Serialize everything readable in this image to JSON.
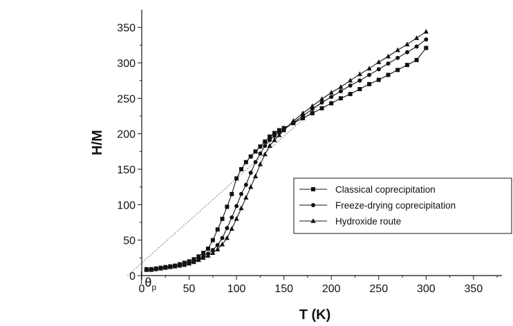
{
  "chart_data": {
    "type": "line",
    "xlabel": "T (K)",
    "ylabel": "H/M",
    "xlim": [
      0,
      380
    ],
    "ylim": [
      0,
      375
    ],
    "xticks": [
      0,
      50,
      100,
      150,
      200,
      250,
      300,
      350
    ],
    "yticks": [
      0,
      50,
      100,
      150,
      200,
      250,
      300,
      350
    ],
    "legend_position": "right",
    "annotation": {
      "text": "θ",
      "subscript": "p",
      "x": -15
    },
    "extrapolation_line": {
      "x": [
        -15,
        190
      ],
      "y": [
        0,
        244
      ],
      "style": "dotted"
    },
    "series": [
      {
        "name": "Classical coprecipitation",
        "marker": "square",
        "x": [
          5,
          10,
          15,
          20,
          25,
          30,
          35,
          40,
          45,
          50,
          55,
          60,
          65,
          70,
          75,
          80,
          85,
          90,
          95,
          100,
          105,
          110,
          115,
          120,
          125,
          130,
          135,
          140,
          145,
          150,
          160,
          170,
          180,
          190,
          200,
          210,
          220,
          230,
          240,
          250,
          260,
          270,
          280,
          290,
          300
        ],
        "y": [
          9,
          9,
          10,
          11,
          12,
          13,
          14,
          16,
          18,
          20,
          23,
          27,
          32,
          38,
          50,
          65,
          80,
          97,
          115,
          137,
          150,
          160,
          168,
          175,
          182,
          189,
          196,
          201,
          205,
          208,
          215,
          222,
          229,
          236,
          243,
          250,
          256,
          263,
          270,
          276,
          283,
          290,
          297,
          304,
          321
        ]
      },
      {
        "name": "Freeze-drying coprecipitation",
        "marker": "circle",
        "x": [
          5,
          10,
          15,
          20,
          25,
          30,
          35,
          40,
          45,
          50,
          55,
          60,
          65,
          70,
          75,
          80,
          85,
          90,
          95,
          100,
          105,
          110,
          115,
          120,
          125,
          130,
          135,
          140,
          145,
          150,
          160,
          170,
          180,
          190,
          200,
          210,
          220,
          230,
          240,
          250,
          260,
          270,
          280,
          290,
          300
        ],
        "y": [
          8,
          9,
          9,
          10,
          11,
          12,
          13,
          14,
          16,
          18,
          20,
          23,
          27,
          31,
          36,
          43,
          53,
          67,
          82,
          98,
          115,
          128,
          145,
          160,
          172,
          183,
          191,
          197,
          202,
          206,
          216,
          225,
          235,
          244,
          252,
          260,
          268,
          275,
          283,
          291,
          299,
          307,
          315,
          323,
          333
        ]
      },
      {
        "name": "Hydroxide route",
        "marker": "triangle",
        "x": [
          5,
          10,
          15,
          20,
          25,
          30,
          35,
          40,
          45,
          50,
          55,
          60,
          65,
          70,
          75,
          80,
          85,
          90,
          95,
          100,
          105,
          110,
          115,
          120,
          125,
          130,
          135,
          140,
          145,
          150,
          160,
          170,
          180,
          190,
          200,
          210,
          220,
          230,
          240,
          250,
          260,
          270,
          280,
          290,
          300
        ],
        "y": [
          8,
          8,
          9,
          10,
          11,
          12,
          13,
          14,
          15,
          17,
          19,
          22,
          25,
          28,
          32,
          37,
          44,
          53,
          66,
          80,
          95,
          110,
          125,
          140,
          157,
          171,
          183,
          191,
          198,
          205,
          218,
          229,
          239,
          249,
          258,
          266,
          275,
          284,
          292,
          301,
          309,
          318,
          326,
          335,
          344
        ]
      }
    ]
  }
}
